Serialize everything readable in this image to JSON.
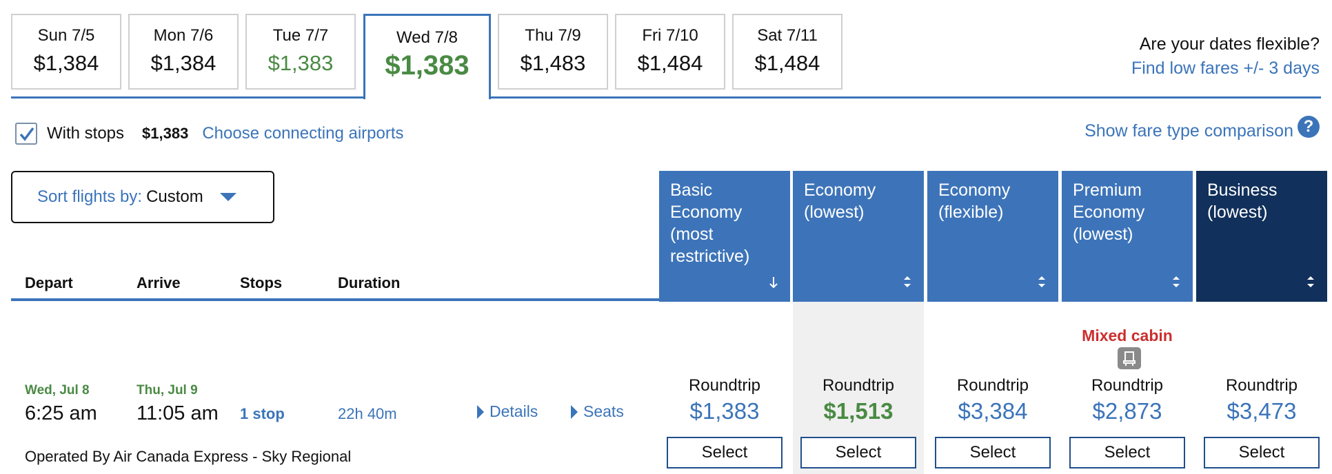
{
  "date_tabs": [
    {
      "day": "Sun 7/5",
      "price": "$1,384",
      "low": false
    },
    {
      "day": "Mon 7/6",
      "price": "$1,384",
      "low": false
    },
    {
      "day": "Tue 7/7",
      "price": "$1,383",
      "low": true
    },
    {
      "day": "Wed 7/8",
      "price": "$1,383",
      "low": true,
      "selected": true
    },
    {
      "day": "Thu 7/9",
      "price": "$1,483",
      "low": false
    },
    {
      "day": "Fri 7/10",
      "price": "$1,484",
      "low": false
    },
    {
      "day": "Sat 7/11",
      "price": "$1,484",
      "low": false
    }
  ],
  "flexible": {
    "question": "Are your dates flexible?",
    "link": "Find low fares +/- 3 days"
  },
  "stops": {
    "label": "With stops",
    "price": "$1,383",
    "link": "Choose connecting airports",
    "checked": true
  },
  "fare_compare": {
    "link": "Show fare type comparison",
    "help": "?"
  },
  "sort": {
    "key": "Sort flights by:",
    "value": "Custom"
  },
  "columns": {
    "depart": "Depart",
    "arrive": "Arrive",
    "stops": "Stops",
    "duration": "Duration"
  },
  "fare_types": [
    {
      "label": "Basic Economy (most restrictive)",
      "sort": "down"
    },
    {
      "label": "Economy (lowest)",
      "sort": "both"
    },
    {
      "label": "Economy (flexible)",
      "sort": "both"
    },
    {
      "label": "Premium Economy (lowest)",
      "sort": "both"
    },
    {
      "label": "Business (lowest)",
      "sort": "both"
    }
  ],
  "flight": {
    "depart_date": "Wed, Jul 8",
    "depart_time": "6:25 am",
    "arrive_date": "Thu, Jul 9",
    "arrive_time": "11:05 am",
    "stops": "1 stop",
    "duration": "22h 40m",
    "details": "Details",
    "seats": "Seats",
    "operated": "Operated By Air Canada Express - Sky Regional",
    "mixed_cabin": "Mixed cabin",
    "fares": [
      {
        "label": "Roundtrip",
        "price": "$1,383",
        "select": "Select"
      },
      {
        "label": "Roundtrip",
        "price": "$1,513",
        "select": "Select",
        "highlight": true
      },
      {
        "label": "Roundtrip",
        "price": "$3,384",
        "select": "Select"
      },
      {
        "label": "Roundtrip",
        "price": "$2,873",
        "select": "Select"
      },
      {
        "label": "Roundtrip",
        "price": "$3,473",
        "select": "Select"
      }
    ]
  },
  "colors": {
    "accent": "#3b74b9",
    "dark": "#11305b",
    "green": "#4a8a44",
    "red": "#cc2f2f"
  }
}
